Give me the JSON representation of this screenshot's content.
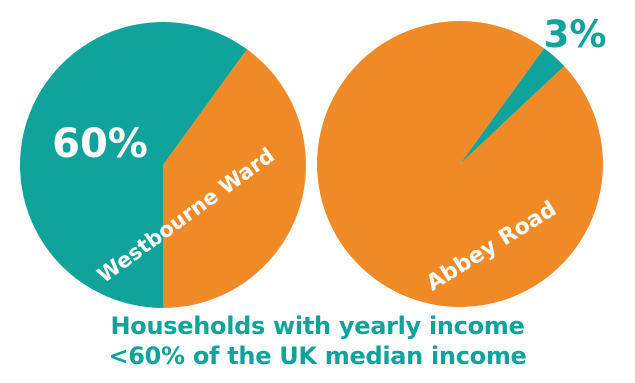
{
  "colors": {
    "teal": "#10a39b",
    "orange": "#f08a26",
    "text_on_chart": "#ffffff",
    "caption": "#10a39b"
  },
  "chart_data": [
    {
      "type": "pie",
      "label": "Westbourne Ward",
      "value_label": "60%",
      "slices": [
        {
          "value": 60,
          "color": "#10a39b"
        },
        {
          "value": 40,
          "color": "#f08a26"
        }
      ]
    },
    {
      "type": "pie",
      "label": "Abbey Road",
      "value_label": "3%",
      "slices": [
        {
          "value": 3,
          "color": "#10a39b"
        },
        {
          "value": 97,
          "color": "#f08a26"
        }
      ]
    }
  ],
  "caption": {
    "line1": "Households with yearly income",
    "line2": "<60% of the UK median income"
  }
}
